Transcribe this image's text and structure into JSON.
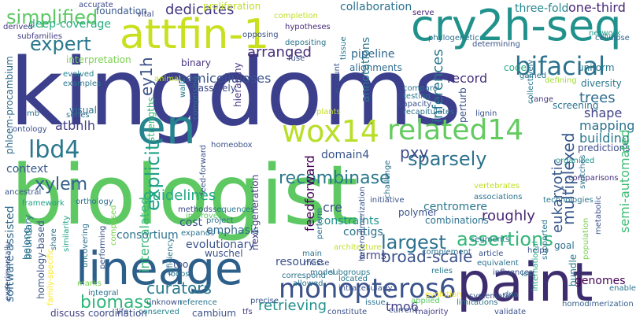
{
  "words": [
    {
      "text": "kingdoms",
      "color": "#3b3f8c"
    },
    {
      "text": "biologist",
      "color": "#5ec962"
    },
    {
      "text": "paint",
      "color": "#3e2d6e"
    },
    {
      "text": "lineage",
      "color": "#2c5f8a"
    },
    {
      "text": "en",
      "color": "#25848e"
    },
    {
      "text": "attfin-1",
      "color": "#c9e020"
    },
    {
      "text": "cry2h-seq",
      "color": "#21918c"
    },
    {
      "text": "wox14",
      "color": "#b8de29"
    },
    {
      "text": "related14",
      "color": "#63cb5f"
    },
    {
      "text": "monopteros6",
      "color": "#3b528b"
    },
    {
      "text": "lbd4",
      "color": "#2a788e"
    },
    {
      "text": "bifacial",
      "color": "#2c728e"
    },
    {
      "text": "simplified",
      "color": "#5dc863"
    },
    {
      "text": "expert",
      "color": "#2a788e"
    },
    {
      "text": "explicit",
      "color": "#1fa187"
    },
    {
      "text": "xylem",
      "color": "#355f8d"
    },
    {
      "text": "sparsely",
      "color": "#2c728e"
    },
    {
      "text": "recombinase",
      "color": "#2a788e"
    },
    {
      "text": "assertions",
      "color": "#34b679"
    },
    {
      "text": "biomass",
      "color": "#31b57b"
    },
    {
      "text": "pxy",
      "color": "#3e4989"
    },
    {
      "text": "ey1h",
      "color": "#3a538b"
    },
    {
      "text": "atbhlh",
      "color": "#433e85"
    },
    {
      "text": "arranged",
      "color": "#472d7b"
    },
    {
      "text": "dedicates",
      "color": "#453781"
    },
    {
      "text": "record",
      "color": "#46327e"
    },
    {
      "text": "hemicelluloses",
      "color": "#3b528b"
    },
    {
      "text": "inferences",
      "color": "#2a778e"
    },
    {
      "text": "trees",
      "color": "#2f6c8e"
    },
    {
      "text": "shape",
      "color": "#414487"
    },
    {
      "text": "mapping",
      "color": "#2c728e"
    },
    {
      "text": "building",
      "color": "#2a788e"
    },
    {
      "text": "predictions",
      "color": "#3e4a89"
    },
    {
      "text": "multiplexed",
      "color": "#37598c"
    },
    {
      "text": "semi-automated",
      "color": "#3dbc74"
    },
    {
      "text": "eukaryotic",
      "color": "#38598c"
    },
    {
      "text": "roughly",
      "color": "#482576"
    },
    {
      "text": "largest",
      "color": "#2c728e"
    },
    {
      "text": "broad-scale",
      "color": "#3b528b"
    },
    {
      "text": "tmo6",
      "color": "#433e85"
    },
    {
      "text": "retrieving",
      "color": "#21918c"
    },
    {
      "text": "curators",
      "color": "#2a788e"
    },
    {
      "text": "guidelines",
      "color": "#22a884"
    },
    {
      "text": "context",
      "color": "#365c8d"
    },
    {
      "text": "intercalated",
      "color": "#37b878"
    },
    {
      "text": "domain4",
      "color": "#3a548c"
    },
    {
      "text": "feedforward",
      "color": "#440154"
    },
    {
      "text": "software-assisted",
      "color": "#306a8e"
    },
    {
      "text": "phloem-procambium",
      "color": "#2f6b8e"
    },
    {
      "text": "deep-coverage",
      "color": "#27ad81"
    },
    {
      "text": "foundation",
      "color": "#38598c"
    },
    {
      "text": "collaboration",
      "color": "#2c728e"
    },
    {
      "text": "three-fold",
      "color": "#24878e"
    },
    {
      "text": "one-third",
      "color": "#482677"
    },
    {
      "text": "pipeline",
      "color": "#31688e"
    },
    {
      "text": "alignments",
      "color": "#2f6c8e"
    },
    {
      "text": "annotations",
      "color": "#2a788e"
    },
    {
      "text": "constraints",
      "color": "#20928c"
    },
    {
      "text": "emphasis",
      "color": "#31688e"
    },
    {
      "text": "cost",
      "color": "#3b528b"
    },
    {
      "text": "consortium",
      "color": "#2c728e"
    },
    {
      "text": "evolutionary",
      "color": "#3b528b"
    },
    {
      "text": "resource",
      "color": "#3a538b"
    },
    {
      "text": "contigs",
      "color": "#2c728e"
    },
    {
      "text": "centromere",
      "color": "#2a778e"
    },
    {
      "text": "cre",
      "color": "#3b528b"
    },
    {
      "text": "polymer",
      "color": "#3b528b"
    },
    {
      "text": "arms",
      "color": "#3f4788"
    },
    {
      "text": "strengths",
      "color": "#35b779"
    },
    {
      "text": "hierarchy",
      "color": "#453781"
    },
    {
      "text": "belong",
      "color": "#2b758e"
    },
    {
      "text": "visual",
      "color": "#2c728e"
    },
    {
      "text": "interpretation",
      "color": "#7ad151"
    },
    {
      "text": "hypotheses",
      "color": "#472c7a"
    },
    {
      "text": "binary",
      "color": "#46337f"
    },
    {
      "text": "massively",
      "color": "#3e4a89"
    },
    {
      "text": "genomes",
      "color": "#440154"
    },
    {
      "text": "next-generation",
      "color": "#443a83"
    },
    {
      "text": "homeobox",
      "color": "#3b528b"
    },
    {
      "text": "combinations",
      "color": "#2c728e"
    },
    {
      "text": "bundle",
      "color": "#2a788e"
    },
    {
      "text": "organized",
      "color": "#1f948c"
    },
    {
      "text": "comparisons",
      "color": "#46337f"
    },
    {
      "text": "homodimerization",
      "color": "#355f8d"
    },
    {
      "text": "enable",
      "color": "#2b758e"
    },
    {
      "text": "screening",
      "color": "#2c728e"
    },
    {
      "text": "uniform",
      "color": "#2a788e"
    },
    {
      "text": "code",
      "color": "#22a884"
    },
    {
      "text": "diversity",
      "color": "#2a788e"
    },
    {
      "text": "defining",
      "color": "#a2da37"
    },
    {
      "text": "range",
      "color": "#453781"
    },
    {
      "text": "cellulose",
      "color": "#31688e"
    },
    {
      "text": "network",
      "color": "#1f988b"
    },
    {
      "text": "determining",
      "color": "#3b528b"
    },
    {
      "text": "gained",
      "color": "#2c728e"
    },
    {
      "text": "serve",
      "color": "#482576"
    },
    {
      "text": "vital",
      "color": "#3e4a89"
    },
    {
      "text": "proliferation",
      "color": "#bddf26"
    },
    {
      "text": "completion",
      "color": "#c2df23"
    },
    {
      "text": "accurate",
      "color": "#3e4a89"
    },
    {
      "text": "derived",
      "color": "#453781"
    },
    {
      "text": "subfamilies",
      "color": "#433e85"
    },
    {
      "text": "examples",
      "color": "#2a788e"
    },
    {
      "text": "evolved",
      "color": "#25848e"
    },
    {
      "text": "mb",
      "color": "#2c728e"
    },
    {
      "text": "ontology",
      "color": "#3b528b"
    },
    {
      "text": "series",
      "color": "#2c728e"
    },
    {
      "text": "ancestral",
      "color": "#3b528b"
    },
    {
      "text": "framework",
      "color": "#1fa187"
    },
    {
      "text": "orthology",
      "color": "#2c728e"
    },
    {
      "text": "methods",
      "color": "#3e4a89"
    },
    {
      "text": "sequences",
      "color": "#2a788e"
    },
    {
      "text": "improved",
      "color": "#5ec962"
    },
    {
      "text": "project",
      "color": "#2c728e"
    },
    {
      "text": "expands",
      "color": "#2c728e"
    },
    {
      "text": "wuschel",
      "color": "#3b528b"
    },
    {
      "text": "composed",
      "color": "#7ad151"
    },
    {
      "text": "similarity",
      "color": "#20a386"
    },
    {
      "text": "boundary",
      "color": "#2c728e"
    },
    {
      "text": "homology-based",
      "color": "#3b528b"
    },
    {
      "text": "family-specific",
      "color": "#fde725"
    },
    {
      "text": "experimentally",
      "color": "#3b528b"
    },
    {
      "text": "marks",
      "color": "#7ad151"
    },
    {
      "text": "discuss",
      "color": "#433e85"
    },
    {
      "text": "coordination",
      "color": "#3e4a89"
    },
    {
      "text": "cambium",
      "color": "#3b528b"
    },
    {
      "text": "tfs",
      "color": "#443a83"
    },
    {
      "text": "unknown",
      "color": "#3b528b"
    },
    {
      "text": "reference",
      "color": "#2c728e"
    },
    {
      "text": "conserved",
      "color": "#25848e"
    },
    {
      "text": "precise",
      "color": "#3b528b"
    },
    {
      "text": "issue",
      "color": "#2c728e"
    },
    {
      "text": "constitute",
      "color": "#3b528b"
    },
    {
      "text": "majority",
      "color": "#433e85"
    },
    {
      "text": "limitations",
      "color": "#2c728e"
    },
    {
      "text": "validate",
      "color": "#3b528b"
    },
    {
      "text": "located",
      "color": "#2a788e"
    },
    {
      "text": "allowed",
      "color": "#2c728e"
    },
    {
      "text": "intracellularly",
      "color": "#3b528b"
    },
    {
      "text": "correspond",
      "color": "#2c728e"
    },
    {
      "text": "influences",
      "color": "#3b528b"
    },
    {
      "text": "lost",
      "color": "#2c728e"
    },
    {
      "text": "segments",
      "color": "#2a788e"
    },
    {
      "text": "article",
      "color": "#3b528b"
    },
    {
      "text": "equivalent",
      "color": "#2c728e"
    },
    {
      "text": "supported",
      "color": "#2a788e"
    },
    {
      "text": "population",
      "color": "#7ad151"
    },
    {
      "text": "metabolic",
      "color": "#3b528b"
    },
    {
      "text": "goal",
      "color": "#2c728e"
    },
    {
      "text": "technologies",
      "color": "#2a788e"
    },
    {
      "text": "helps",
      "color": "#3b528b"
    },
    {
      "text": "international",
      "color": "#22a884"
    },
    {
      "text": "dna",
      "color": "#2c728e"
    },
    {
      "text": "systematic",
      "color": "#3b528b"
    },
    {
      "text": "evolution",
      "color": "#fde725"
    },
    {
      "text": "applied",
      "color": "#5ec962"
    },
    {
      "text": "main",
      "color": "#2c728e"
    },
    {
      "text": "masse",
      "color": "#3b528b"
    },
    {
      "text": "model",
      "color": "#2c728e"
    },
    {
      "text": "subgroups",
      "color": "#2a788e"
    },
    {
      "text": "architecture",
      "color": "#c2df23"
    },
    {
      "text": "heterodimerization",
      "color": "#3b528b"
    },
    {
      "text": "perform",
      "color": "#2c728e"
    },
    {
      "text": "relies",
      "color": "#2a788e"
    },
    {
      "text": "complement",
      "color": "#2c728e"
    },
    {
      "text": "current",
      "color": "#3b528b"
    },
    {
      "text": "integral",
      "color": "#2c728e"
    },
    {
      "text": "life",
      "color": "#3b528b"
    },
    {
      "text": "efficiency",
      "color": "#2c728e"
    },
    {
      "text": "performing",
      "color": "#3b528b"
    },
    {
      "text": "uncovering",
      "color": "#2c728e"
    },
    {
      "text": "share",
      "color": "#2c728e"
    },
    {
      "text": "too",
      "color": "#3b528b"
    },
    {
      "text": "loops",
      "color": "#2a788e"
    },
    {
      "text": "initiative",
      "color": "#3b528b"
    },
    {
      "text": "challenge",
      "color": "#2c728e"
    },
    {
      "text": "feed-forward",
      "color": "#3b528b"
    },
    {
      "text": "comprising",
      "color": "#2c728e"
    },
    {
      "text": "walls",
      "color": "#2a788e"
    },
    {
      "text": "animal",
      "color": "#c2df23"
    },
    {
      "text": "opposing",
      "color": "#3b528b"
    },
    {
      "text": "depositing",
      "color": "#2c728e"
    },
    {
      "text": "fuse",
      "color": "#3b528b"
    },
    {
      "text": "phylogenetic",
      "color": "#2c728e"
    },
    {
      "text": "tissue",
      "color": "#2a788e"
    },
    {
      "text": "plants",
      "color": "#c2df23"
    },
    {
      "text": "account",
      "color": "#3b528b"
    },
    {
      "text": "compare",
      "color": "#2c728e"
    },
    {
      "text": "testing",
      "color": "#2a788e"
    },
    {
      "text": "capacity",
      "color": "#3b528b"
    },
    {
      "text": "recapitulates",
      "color": "#2c728e"
    },
    {
      "text": "perturb",
      "color": "#3b528b"
    },
    {
      "text": "lignin",
      "color": "#3b528b"
    },
    {
      "text": "associations",
      "color": "#2c728e"
    },
    {
      "text": "vertebrates",
      "color": "#c2df23"
    },
    {
      "text": "switches",
      "color": "#2c728e"
    },
    {
      "text": "collectively",
      "color": "#2a788e"
    }
  ]
}
